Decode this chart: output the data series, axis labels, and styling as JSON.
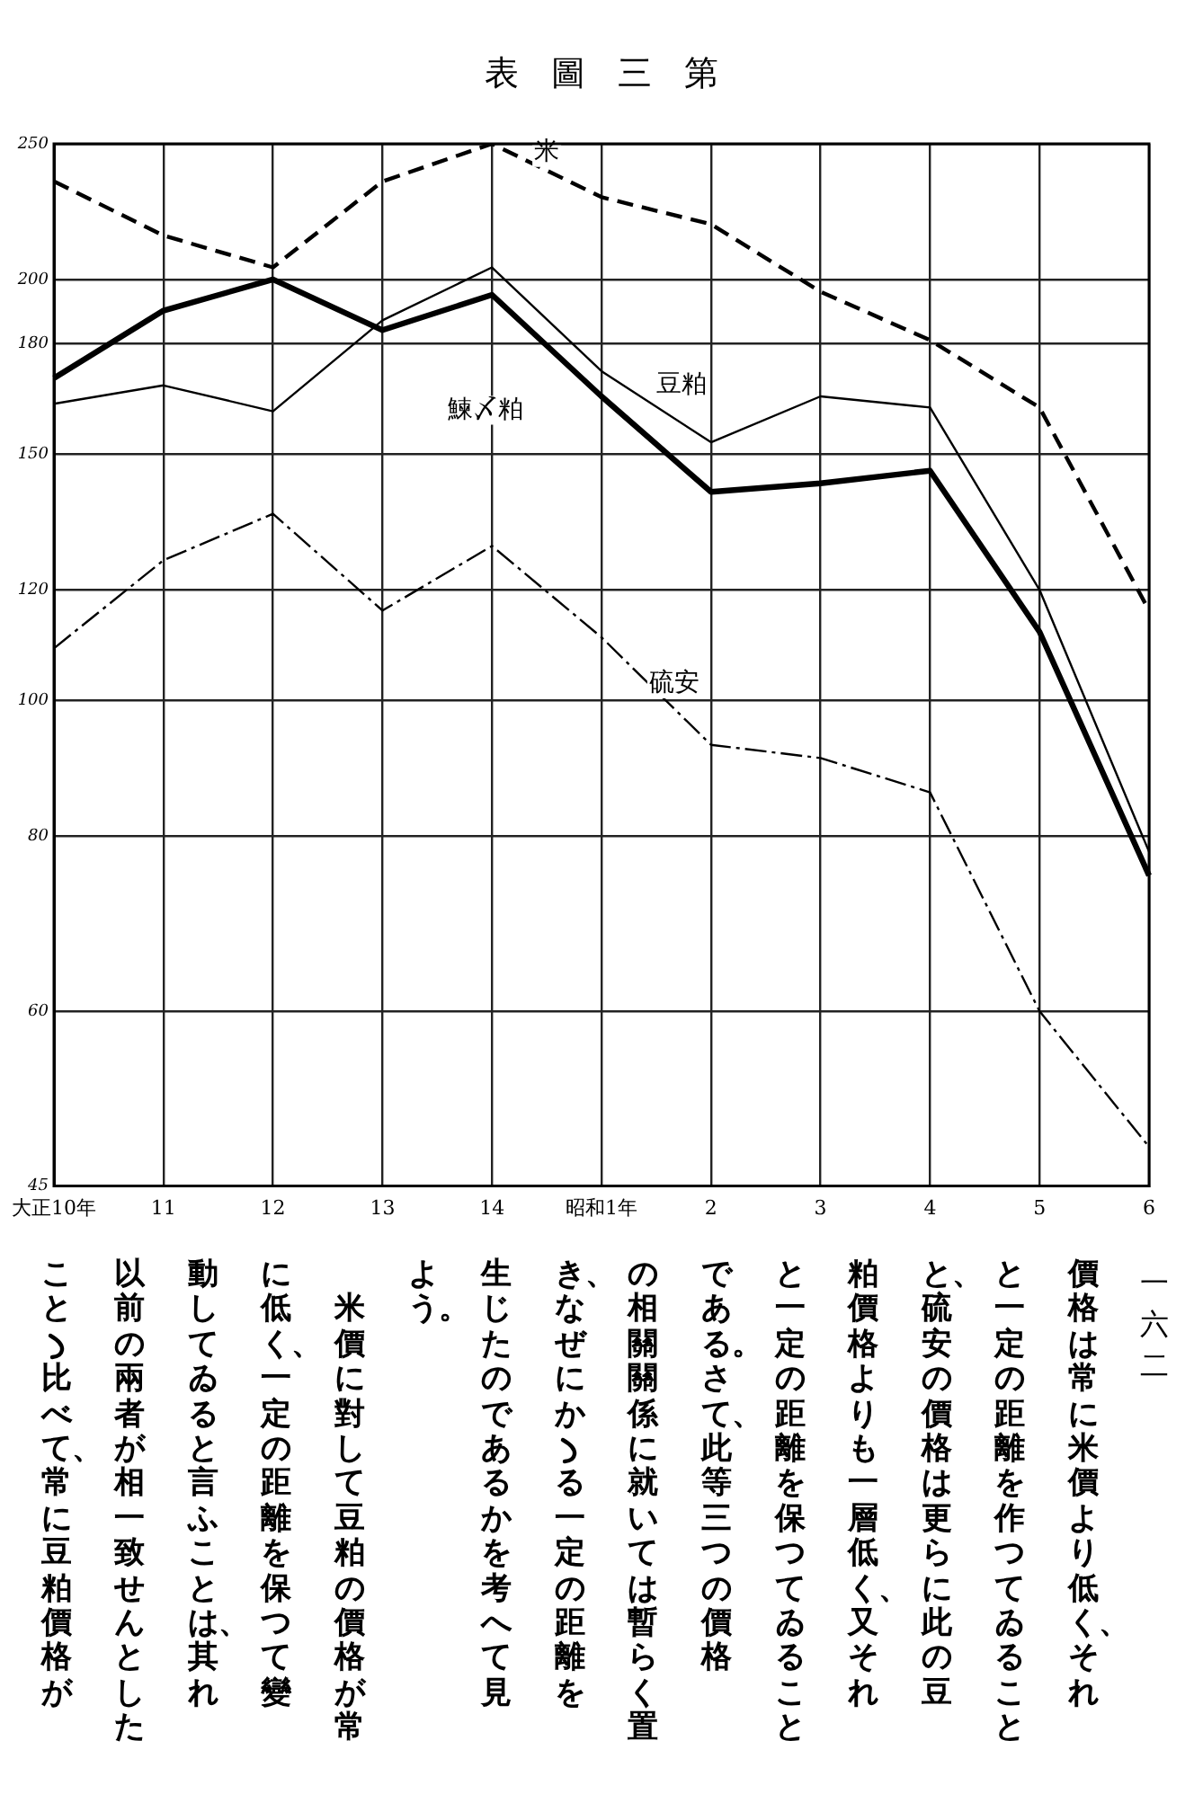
{
  "chart_data": {
    "type": "line",
    "title": "表圖三第",
    "categories": [
      "大正10年",
      "11",
      "12",
      "13",
      "14",
      "昭和1年",
      "2",
      "3",
      "4",
      "5",
      "6"
    ],
    "series": [
      {
        "name": "米",
        "color": "#000000",
        "line_style": "dashed",
        "values": [
          235,
          215,
          204,
          235,
          250,
          229,
          219,
          196,
          181,
          162,
          116
        ]
      },
      {
        "name": "豆粕",
        "color": "#000000",
        "line_style": "solid",
        "values": [
          163,
          168,
          161,
          187,
          204,
          172,
          153,
          165,
          162,
          120,
          78
        ]
      },
      {
        "name": "鰊〆粕",
        "color": "#000000",
        "line_style": "solid",
        "values": [
          170,
          190,
          200,
          184,
          195,
          165,
          141,
          143,
          146,
          112,
          75
        ]
      },
      {
        "name": "硫安",
        "color": "#000000",
        "line_style": "dashdot",
        "values": [
          109,
          126,
          136,
          116,
          129,
          111,
          93,
          91,
          86,
          60,
          48
        ]
      }
    ],
    "log": true,
    "ylim": [
      45,
      250
    ],
    "yticks": [
      45,
      60,
      80,
      100,
      120,
      150,
      180,
      200,
      250
    ],
    "grid": true,
    "legend": false,
    "marker": "none",
    "annotations": [
      "一六二",
      "價格は常に米價より低く、それ",
      "と一定の距離を作つてゐること",
      "と、硫安の價格は更らに此の豆",
      "粕價格よりも一層低く、又それ",
      "と一定の距離を保つてゐること",
      "である。さて、此等三つの價格",
      "の相關關係に就いては暫らく置",
      "き、なぜにかゝる一定の距離を",
      "生じたのであるかを考へて見",
      "よう。",
      "　米價に對して豆粕の價格が常",
      "に低く、一定の距離を保つて變",
      "動してゐると言ふことは、其れ",
      "以前の兩者が相一致せんとした",
      "ことゝ比べて、常に豆粕價格が"
    ]
  }
}
